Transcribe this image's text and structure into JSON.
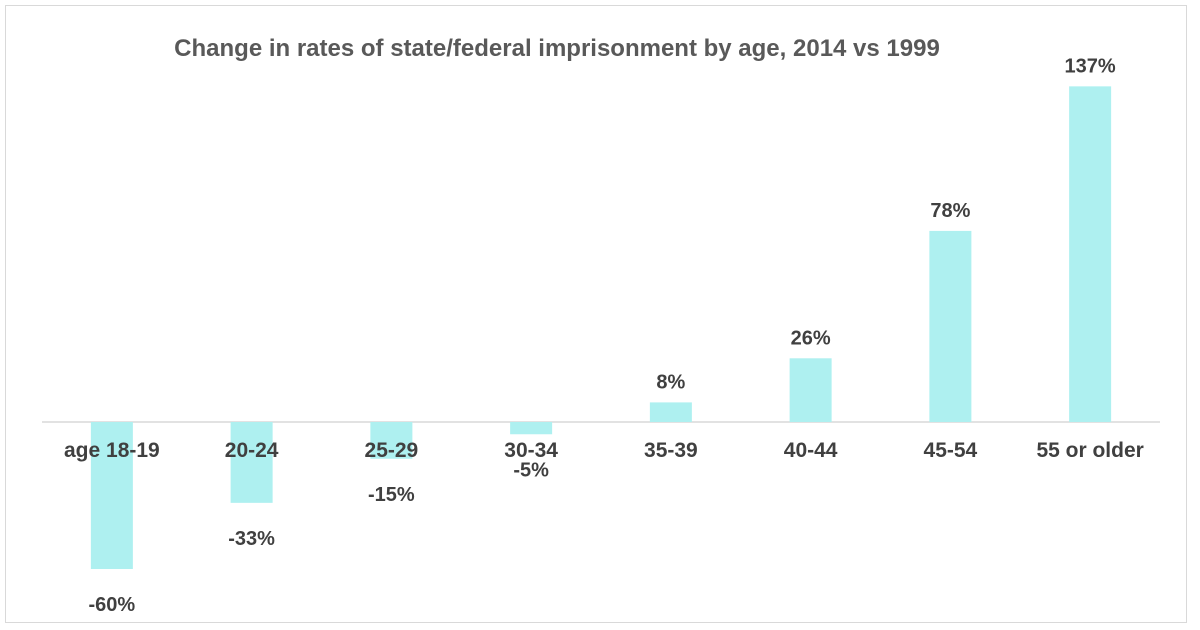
{
  "chart_data": {
    "type": "bar",
    "title": "Change in rates of state/federal imprisonment by age, 2014 vs 1999",
    "categories": [
      "age 18-19",
      "20-24",
      "25-29",
      "30-34",
      "35-39",
      "40-44",
      "45-54",
      "55 or older"
    ],
    "values": [
      -60,
      -33,
      -15,
      -5,
      8,
      26,
      78,
      137
    ],
    "value_labels": [
      "-60%",
      "-33%",
      "-15%",
      "-5%",
      "8%",
      "26%",
      "78%",
      "137%"
    ],
    "xlabel": "",
    "ylabel": "",
    "grid": false,
    "legend": "none",
    "bar_color": "#aef0f0",
    "axis_color": "#d9d9d9"
  }
}
